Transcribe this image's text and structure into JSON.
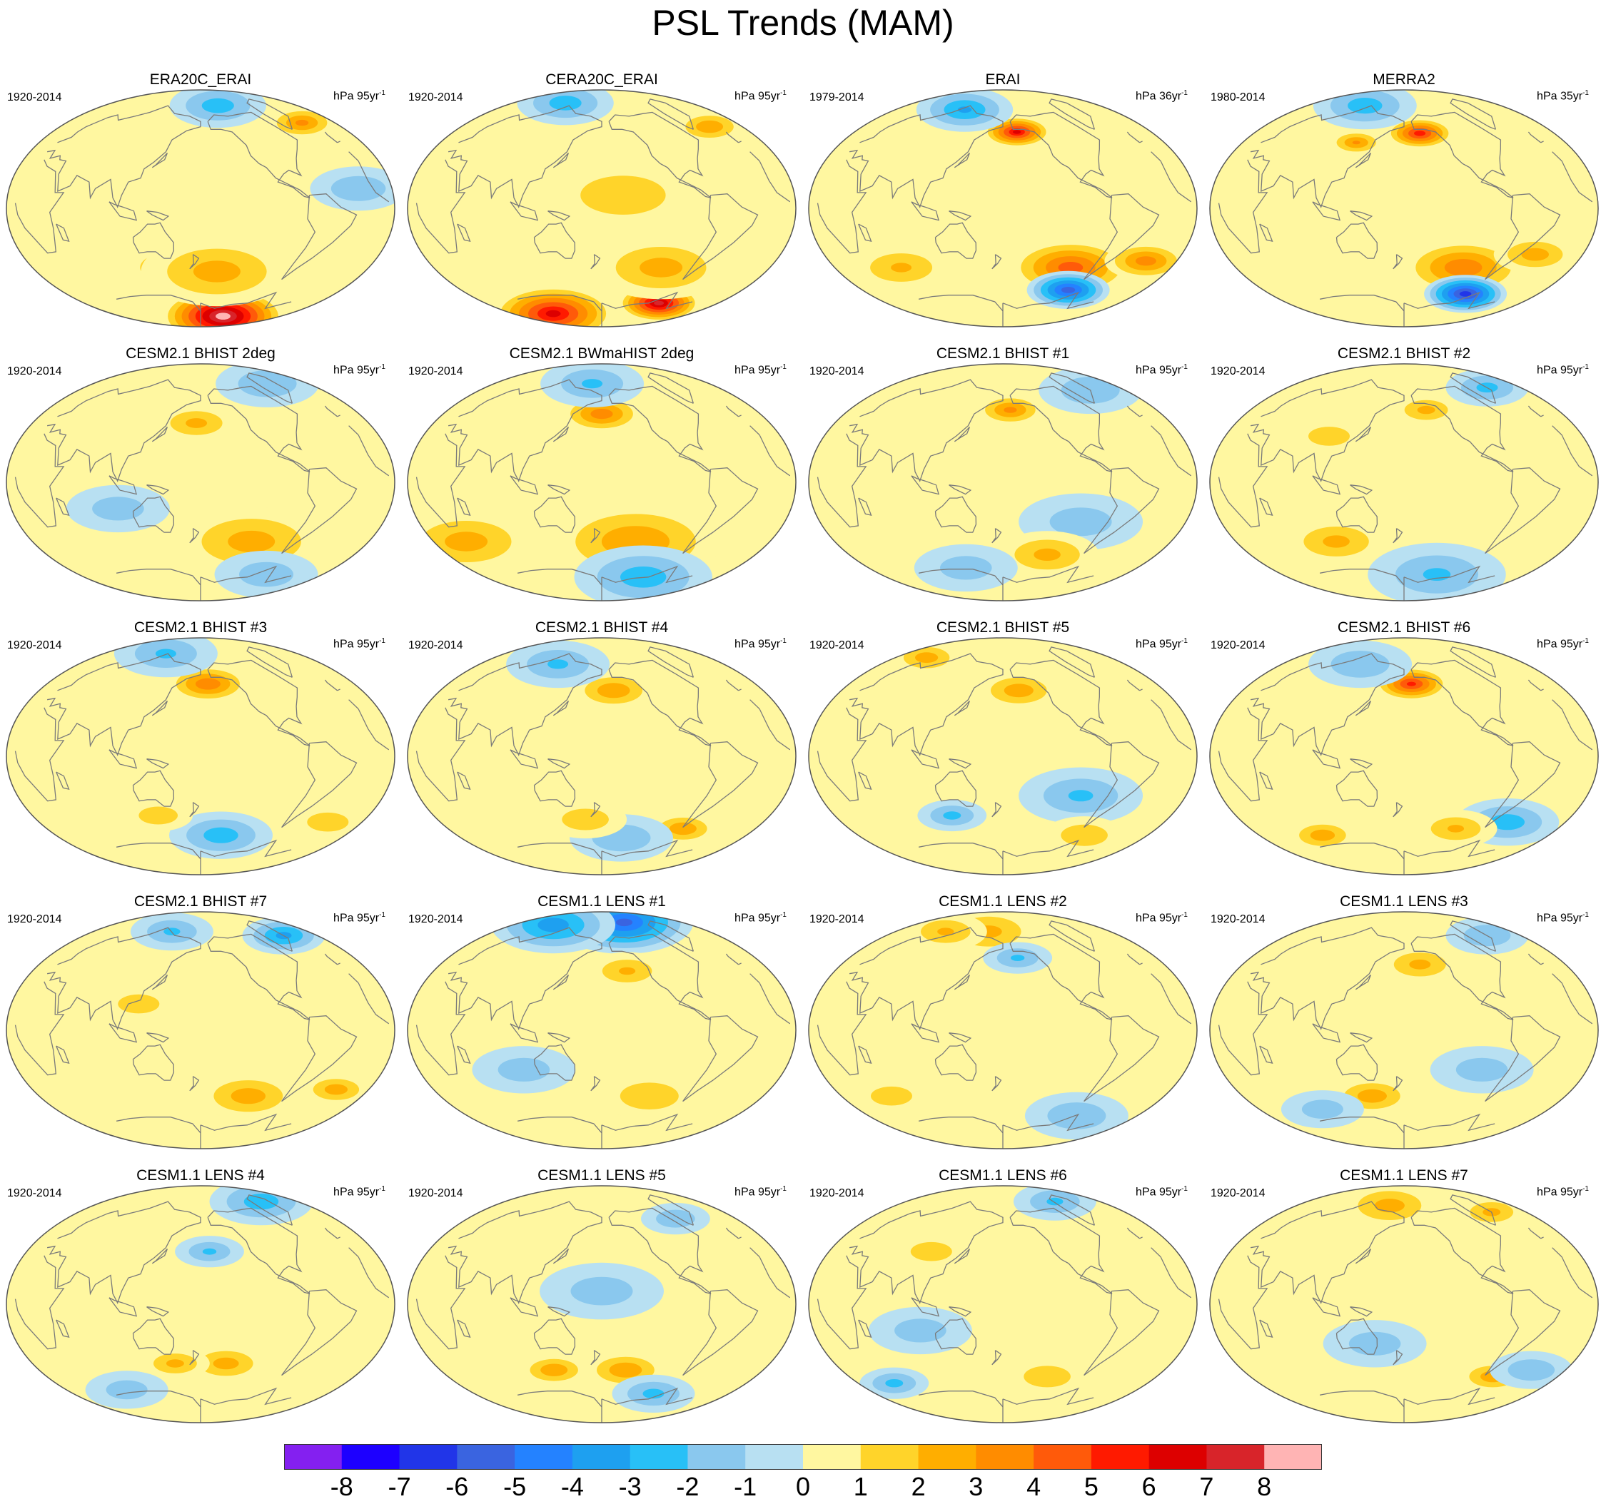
{
  "title": "PSL Trends (MAM)",
  "panels": [
    {
      "title": "ERA20C_ERAI",
      "period": "1920-2014",
      "units": "hPa 95yr",
      "units_sup": "-1",
      "features": [
        {
          "v": 8.5,
          "lon": -120,
          "lat": -82,
          "s": 18
        },
        {
          "v": 2.6,
          "lon": 150,
          "lat": -45,
          "s": 15
        },
        {
          "v": 2.4,
          "lon": -160,
          "lat": -48,
          "s": 22
        },
        {
          "v": 3.2,
          "lon": -15,
          "lat": 65,
          "s": 10
        },
        {
          "v": -2.5,
          "lon": -140,
          "lat": 78,
          "s": 14
        },
        {
          "v": -1.8,
          "lon": -30,
          "lat": 15,
          "s": 14
        }
      ]
    },
    {
      "title": "CERA20C_ERAI",
      "period": "1920-2014",
      "units": "hPa 95yr",
      "units_sup": "-1",
      "features": [
        {
          "v": 7.2,
          "lon": -70,
          "lat": -72,
          "s": 12
        },
        {
          "v": 6.2,
          "lon": 60,
          "lat": -80,
          "s": 18
        },
        {
          "v": 2.4,
          "lon": -110,
          "lat": -45,
          "s": 20
        },
        {
          "v": 2.8,
          "lon": -15,
          "lat": 62,
          "s": 10
        },
        {
          "v": -2.5,
          "lon": 90,
          "lat": 80,
          "s": 14
        },
        {
          "v": 1.2,
          "lon": -160,
          "lat": 10,
          "s": 30
        }
      ]
    },
    {
      "title": "ERAI",
      "period": "1979-2014",
      "units": "hPa 36yr",
      "units_sup": "-1",
      "features": [
        {
          "v": 6.0,
          "lon": -160,
          "lat": 58,
          "s": 10
        },
        {
          "v": 4.5,
          "lon": -100,
          "lat": -45,
          "s": 18
        },
        {
          "v": -5.5,
          "lon": -80,
          "lat": -62,
          "s": 12
        },
        {
          "v": 3.5,
          "lon": -20,
          "lat": -40,
          "s": 12
        },
        {
          "v": -3.0,
          "lon": 100,
          "lat": 75,
          "s": 14
        },
        {
          "v": 2.0,
          "lon": 60,
          "lat": -45,
          "s": 15
        }
      ]
    },
    {
      "title": "MERRA2",
      "period": "1980-2014",
      "units": "hPa 35yr",
      "units_sup": "-1",
      "features": [
        {
          "v": 5.5,
          "lon": -158,
          "lat": 57,
          "s": 10
        },
        {
          "v": 3.8,
          "lon": -110,
          "lat": -45,
          "s": 18
        },
        {
          "v": -6.5,
          "lon": -80,
          "lat": -65,
          "s": 12
        },
        {
          "v": 3.0,
          "lon": 120,
          "lat": 50,
          "s": 8
        },
        {
          "v": -2.5,
          "lon": 90,
          "lat": 78,
          "s": 15
        },
        {
          "v": 2.5,
          "lon": -40,
          "lat": -35,
          "s": 12
        }
      ]
    },
    {
      "title": "CESM2.1 BHIST 2deg",
      "period": "1920-2014",
      "units": "hPa 95yr",
      "units_sup": "-1",
      "features": [
        {
          "v": 2.2,
          "lon": 175,
          "lat": 45,
          "s": 12
        },
        {
          "v": 2.4,
          "lon": -120,
          "lat": -45,
          "s": 22
        },
        {
          "v": -1.8,
          "lon": -40,
          "lat": 75,
          "s": 15
        },
        {
          "v": -1.5,
          "lon": 100,
          "lat": -20,
          "s": 15
        },
        {
          "v": -1.6,
          "lon": -60,
          "lat": -70,
          "s": 15
        }
      ]
    },
    {
      "title": "CESM2.1 BWmaHIST 2deg",
      "period": "1920-2014",
      "units": "hPa 95yr",
      "units_sup": "-1",
      "features": [
        {
          "v": 3.6,
          "lon": 180,
          "lat": 52,
          "s": 12
        },
        {
          "v": 2.8,
          "lon": -140,
          "lat": -45,
          "s": 25
        },
        {
          "v": 2.4,
          "lon": 20,
          "lat": -45,
          "s": 20
        },
        {
          "v": -2.5,
          "lon": -100,
          "lat": -72,
          "s": 20
        },
        {
          "v": -2.0,
          "lon": 160,
          "lat": 75,
          "s": 15
        }
      ]
    },
    {
      "title": "CESM2.1 BHIST #1",
      "period": "1920-2014",
      "units": "hPa 95yr",
      "units_sup": "-1",
      "features": [
        {
          "v": 3.2,
          "lon": -170,
          "lat": 55,
          "s": 10
        },
        {
          "v": -1.8,
          "lon": -20,
          "lat": 70,
          "s": 15
        },
        {
          "v": -1.5,
          "lon": -100,
          "lat": -30,
          "s": 18
        },
        {
          "v": 2.2,
          "lon": -120,
          "lat": -55,
          "s": 15
        },
        {
          "v": -1.5,
          "lon": 120,
          "lat": -65,
          "s": 15
        }
      ]
    },
    {
      "title": "CESM2.1 BHIST #2",
      "period": "1920-2014",
      "units": "hPa 95yr",
      "units_sup": "-1",
      "features": [
        {
          "v": 2.2,
          "lon": -150,
          "lat": 55,
          "s": 10
        },
        {
          "v": 2.2,
          "lon": 100,
          "lat": -45,
          "s": 15
        },
        {
          "v": -2.0,
          "lon": -120,
          "lat": -70,
          "s": 20
        },
        {
          "v": -2.2,
          "lon": -20,
          "lat": 72,
          "s": 12
        },
        {
          "v": 1.5,
          "lon": 100,
          "lat": 35,
          "s": 12
        }
      ]
    },
    {
      "title": "CESM2.1 BHIST #3",
      "period": "1920-2014",
      "units": "hPa 95yr",
      "units_sup": "-1",
      "features": [
        {
          "v": 3.8,
          "lon": -170,
          "lat": 55,
          "s": 12
        },
        {
          "v": -2.5,
          "lon": -150,
          "lat": -60,
          "s": 15
        },
        {
          "v": -2.0,
          "lon": 100,
          "lat": 78,
          "s": 15
        },
        {
          "v": 1.8,
          "lon": 130,
          "lat": -45,
          "s": 10
        },
        {
          "v": 1.5,
          "lon": -20,
          "lat": -50,
          "s": 12
        }
      ]
    },
    {
      "title": "CESM2.1 BHIST #4",
      "period": "1920-2014",
      "units": "hPa 95yr",
      "units_sup": "-1",
      "features": [
        {
          "v": 2.8,
          "lon": -165,
          "lat": 50,
          "s": 12
        },
        {
          "v": 2.8,
          "lon": -70,
          "lat": -55,
          "s": 10
        },
        {
          "v": -2.0,
          "lon": 100,
          "lat": 70,
          "s": 15
        },
        {
          "v": -1.8,
          "lon": -150,
          "lat": -62,
          "s": 15
        },
        {
          "v": 1.8,
          "lon": 160,
          "lat": -48,
          "s": 12
        }
      ]
    },
    {
      "title": "CESM2.1 BHIST #5",
      "period": "1920-2014",
      "units": "hPa 95yr",
      "units_sup": "-1",
      "features": [
        {
          "v": 2.6,
          "lon": -160,
          "lat": 50,
          "s": 12
        },
        {
          "v": -2.0,
          "lon": -100,
          "lat": -30,
          "s": 18
        },
        {
          "v": 2.5,
          "lon": 20,
          "lat": 75,
          "s": 10
        },
        {
          "v": -2.2,
          "lon": 120,
          "lat": -45,
          "s": 10
        },
        {
          "v": 1.8,
          "lon": -60,
          "lat": -60,
          "s": 12
        }
      ]
    },
    {
      "title": "CESM2.1 BHIST #6",
      "period": "1920-2014",
      "units": "hPa 95yr",
      "units_sup": "-1",
      "features": [
        {
          "v": 5.2,
          "lon": -170,
          "lat": 55,
          "s": 11
        },
        {
          "v": -2.5,
          "lon": -50,
          "lat": -50,
          "s": 15
        },
        {
          "v": 2.6,
          "lon": 60,
          "lat": -60,
          "s": 10
        },
        {
          "v": -1.8,
          "lon": 100,
          "lat": 70,
          "s": 15
        },
        {
          "v": 2.0,
          "lon": -110,
          "lat": -55,
          "s": 12
        }
      ]
    },
    {
      "title": "CESM2.1 BHIST #7",
      "period": "1920-2014",
      "units": "hPa 95yr",
      "units_sup": "-1",
      "features": [
        {
          "v": -3.2,
          "lon": -20,
          "lat": 72,
          "s": 12
        },
        {
          "v": 2.5,
          "lon": -120,
          "lat": -50,
          "s": 15
        },
        {
          "v": 2.5,
          "lon": -20,
          "lat": -45,
          "s": 10
        },
        {
          "v": -2.0,
          "lon": 120,
          "lat": 75,
          "s": 12
        },
        {
          "v": 1.5,
          "lon": 120,
          "lat": 20,
          "s": 12
        }
      ]
    },
    {
      "title": "CESM1.1 LENS #1",
      "period": "1920-2014",
      "units": "hPa 95yr",
      "units_sup": "-1",
      "features": [
        {
          "v": -5.0,
          "lon": -120,
          "lat": 82,
          "s": 20
        },
        {
          "v": -3.5,
          "lon": 60,
          "lat": 80,
          "s": 18
        },
        {
          "v": 2.0,
          "lon": -150,
          "lat": 45,
          "s": 12
        },
        {
          "v": 1.8,
          "lon": -120,
          "lat": -50,
          "s": 15
        },
        {
          "v": -1.5,
          "lon": 100,
          "lat": -30,
          "s": 15
        }
      ]
    },
    {
      "title": "CESM1.1 LENS #2",
      "period": "1920-2014",
      "units": "hPa 95yr",
      "units_sup": "-1",
      "features": [
        {
          "v": 2.2,
          "lon": 150,
          "lat": 75,
          "s": 15
        },
        {
          "v": 2.0,
          "lon": 60,
          "lat": 75,
          "s": 12
        },
        {
          "v": -2.0,
          "lon": -160,
          "lat": 55,
          "s": 10
        },
        {
          "v": -1.8,
          "lon": -60,
          "lat": -65,
          "s": 15
        },
        {
          "v": 1.5,
          "lon": 40,
          "lat": -50,
          "s": 12
        }
      ]
    },
    {
      "title": "CESM1.1 LENS #3",
      "period": "1920-2014",
      "units": "hPa 95yr",
      "units_sup": "-1",
      "features": [
        {
          "v": 2.2,
          "lon": -160,
          "lat": 50,
          "s": 12
        },
        {
          "v": 2.6,
          "lon": 140,
          "lat": -50,
          "s": 12
        },
        {
          "v": -1.8,
          "lon": -20,
          "lat": 72,
          "s": 12
        },
        {
          "v": -1.5,
          "lon": -100,
          "lat": -30,
          "s": 15
        },
        {
          "v": -1.5,
          "lon": 60,
          "lat": -60,
          "s": 12
        }
      ]
    },
    {
      "title": "CESM1.1 LENS #4",
      "period": "1920-2014",
      "units": "hPa 95yr",
      "units_sup": "-1",
      "features": [
        {
          "v": -2.0,
          "lon": -170,
          "lat": 40,
          "s": 10
        },
        {
          "v": -2.5,
          "lon": -40,
          "lat": 78,
          "s": 15
        },
        {
          "v": 2.4,
          "lon": -150,
          "lat": -45,
          "s": 12
        },
        {
          "v": 2.2,
          "lon": 150,
          "lat": -45,
          "s": 10
        },
        {
          "v": -1.5,
          "lon": 60,
          "lat": -65,
          "s": 12
        }
      ]
    },
    {
      "title": "CESM1.1 LENS #5",
      "period": "1920-2014",
      "units": "hPa 95yr",
      "units_sup": "-1",
      "features": [
        {
          "v": 2.8,
          "lon": 120,
          "lat": -50,
          "s": 10
        },
        {
          "v": 2.8,
          "lon": -150,
          "lat": -50,
          "s": 12
        },
        {
          "v": -1.8,
          "lon": -60,
          "lat": 65,
          "s": 10
        },
        {
          "v": -2.2,
          "lon": -90,
          "lat": -68,
          "s": 12
        },
        {
          "v": -1.5,
          "lon": 180,
          "lat": 10,
          "s": 18
        }
      ]
    },
    {
      "title": "CESM1.1 LENS #6",
      "period": "1920-2014",
      "units": "hPa 95yr",
      "units_sup": "-1",
      "features": [
        {
          "v": -2.0,
          "lon": -60,
          "lat": 78,
          "s": 12
        },
        {
          "v": -2.2,
          "lon": 20,
          "lat": -60,
          "s": 10
        },
        {
          "v": 1.8,
          "lon": -120,
          "lat": -55,
          "s": 12
        },
        {
          "v": -1.5,
          "lon": 100,
          "lat": -20,
          "s": 15
        },
        {
          "v": 1.5,
          "lon": 100,
          "lat": 40,
          "s": 12
        }
      ]
    },
    {
      "title": "CESM1.1 LENS #7",
      "period": "1920-2014",
      "units": "hPa 95yr",
      "units_sup": "-1",
      "features": [
        {
          "v": 2.4,
          "lon": 150,
          "lat": 75,
          "s": 14
        },
        {
          "v": 2.2,
          "lon": -20,
          "lat": 70,
          "s": 10
        },
        {
          "v": 2.6,
          "lon": -60,
          "lat": -55,
          "s": 10
        },
        {
          "v": -1.8,
          "lon": -20,
          "lat": -50,
          "s": 12
        },
        {
          "v": -1.5,
          "lon": 150,
          "lat": -30,
          "s": 15
        }
      ]
    }
  ],
  "colorbar": {
    "labels": [
      "-8",
      "-7",
      "-6",
      "-5",
      "-4",
      "-3",
      "-2",
      "-1",
      "0",
      "1",
      "2",
      "3",
      "4",
      "5",
      "6",
      "7",
      "8"
    ],
    "colors": [
      "#8420f0",
      "#1d00ff",
      "#2135e8",
      "#3a64e0",
      "#2482ff",
      "#1ea0f0",
      "#28c0f7",
      "#8ac8ee",
      "#b8e0f2",
      "#fff7a0",
      "#ffd42a",
      "#ffae00",
      "#ff8c00",
      "#ff5a0a",
      "#ff1a00",
      "#dd0000",
      "#d8242a",
      "#ffb4b4"
    ]
  },
  "land_color": "#7a7a7a",
  "border_color": "#555555"
}
